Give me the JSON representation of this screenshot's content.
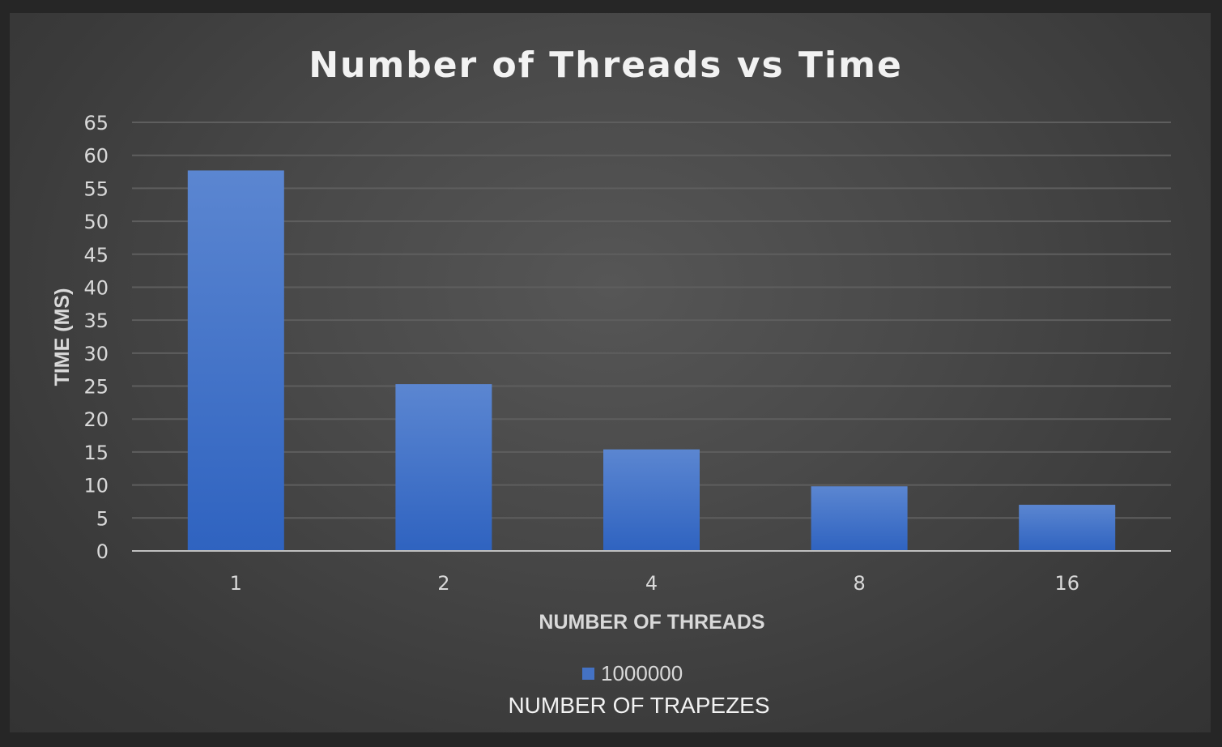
{
  "chart_data": {
    "type": "bar",
    "title": "Number of Threads vs Time",
    "xlabel": "NUMBER OF THREADS",
    "ylabel": "TIME (MS)",
    "categories": [
      "1",
      "2",
      "4",
      "8",
      "16"
    ],
    "series": [
      {
        "name": "1000000",
        "values": [
          57.7,
          25.3,
          15.4,
          9.8,
          7.0
        ],
        "color": "#4472c4"
      }
    ],
    "ylim": [
      0,
      65
    ],
    "yticks": [
      0,
      5,
      10,
      15,
      20,
      25,
      30,
      35,
      40,
      45,
      50,
      55,
      60,
      65
    ],
    "legend_title": "NUMBER OF TRAPEZES",
    "legend_position": "bottom",
    "grid": true
  },
  "colors": {
    "background": "#4a4a4a",
    "bar_top": "#5b86d1",
    "bar_bottom": "#2f63c0"
  }
}
